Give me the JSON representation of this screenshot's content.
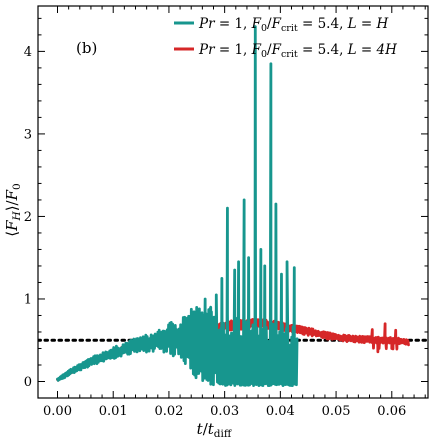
{
  "chart_data": {
    "type": "line",
    "panel_label": "(b)",
    "xlabel": "t/t_diff",
    "ylabel": "⟨F_H⟩/F_0",
    "xlim": [
      -0.0035,
      0.0665
    ],
    "ylim": [
      -0.2,
      4.55
    ],
    "x_ticks": [
      0.0,
      0.01,
      0.02,
      0.03,
      0.04,
      0.05,
      0.06
    ],
    "x_tick_labels": [
      "0.00",
      "0.01",
      "0.02",
      "0.03",
      "0.04",
      "0.05",
      "0.06"
    ],
    "y_ticks": [
      0,
      1,
      2,
      3,
      4
    ],
    "y_tick_labels": [
      "0",
      "1",
      "2",
      "3",
      "4"
    ],
    "grid": false,
    "legend_position": "top-right",
    "reference_line": {
      "y": 0.5,
      "style": "dotted",
      "color": "#000000"
    },
    "series": [
      {
        "name": "Pr = 1, F0/Fcrit = 5.4, L = H",
        "color": "#17968e",
        "kind": "noisy",
        "base_points": [
          [
            0.0,
            0.02
          ],
          [
            0.003,
            0.14
          ],
          [
            0.006,
            0.24
          ],
          [
            0.009,
            0.32
          ],
          [
            0.012,
            0.39
          ],
          [
            0.015,
            0.45
          ],
          [
            0.018,
            0.49
          ],
          [
            0.021,
            0.52
          ],
          [
            0.024,
            0.52
          ],
          [
            0.026,
            0.42
          ],
          [
            0.028,
            0.34
          ],
          [
            0.03,
            0.28
          ],
          [
            0.032,
            0.24
          ],
          [
            0.034,
            0.2
          ],
          [
            0.036,
            0.18
          ],
          [
            0.038,
            0.16
          ],
          [
            0.04,
            0.15
          ],
          [
            0.043,
            0.14
          ]
        ],
        "noise_points": [
          [
            0.0,
            0.02
          ],
          [
            0.012,
            0.08
          ],
          [
            0.018,
            0.12
          ],
          [
            0.022,
            0.28
          ],
          [
            0.025,
            0.45
          ],
          [
            0.028,
            0.55
          ],
          [
            0.043,
            0.55
          ]
        ],
        "spikes": [
          [
            0.0265,
            1.0
          ],
          [
            0.0275,
            0.9
          ],
          [
            0.0285,
            1.05
          ],
          [
            0.0295,
            1.25
          ],
          [
            0.0305,
            2.1
          ],
          [
            0.0318,
            1.35
          ],
          [
            0.0325,
            1.45
          ],
          [
            0.0335,
            2.2
          ],
          [
            0.0343,
            1.5
          ],
          [
            0.0355,
            4.3
          ],
          [
            0.0365,
            1.6
          ],
          [
            0.0372,
            1.4
          ],
          [
            0.0383,
            3.85
          ],
          [
            0.0392,
            2.15
          ],
          [
            0.0402,
            1.3
          ],
          [
            0.0412,
            1.45
          ],
          [
            0.0425,
            1.38
          ]
        ],
        "x_end": 0.043
      },
      {
        "name": "Pr = 1, F0/Fcrit = 5.4, L = 4H",
        "color": "#d62728",
        "kind": "noisy",
        "base_points": [
          [
            0.0,
            0.02
          ],
          [
            0.003,
            0.14
          ],
          [
            0.006,
            0.24
          ],
          [
            0.009,
            0.32
          ],
          [
            0.012,
            0.39
          ],
          [
            0.015,
            0.45
          ],
          [
            0.018,
            0.5
          ],
          [
            0.021,
            0.55
          ],
          [
            0.024,
            0.6
          ],
          [
            0.027,
            0.64
          ],
          [
            0.03,
            0.67
          ],
          [
            0.033,
            0.69
          ],
          [
            0.035,
            0.7
          ],
          [
            0.037,
            0.7
          ],
          [
            0.04,
            0.67
          ],
          [
            0.043,
            0.63
          ],
          [
            0.046,
            0.59
          ],
          [
            0.049,
            0.55
          ],
          [
            0.052,
            0.52
          ],
          [
            0.055,
            0.51
          ],
          [
            0.058,
            0.5
          ],
          [
            0.061,
            0.49
          ],
          [
            0.063,
            0.48
          ]
        ],
        "noise_points": [
          [
            0.0,
            0.01
          ],
          [
            0.012,
            0.04
          ],
          [
            0.02,
            0.05
          ],
          [
            0.03,
            0.06
          ],
          [
            0.04,
            0.05
          ],
          [
            0.052,
            0.04
          ],
          [
            0.063,
            0.04
          ]
        ],
        "spikes": [
          [
            0.0565,
            0.63
          ],
          [
            0.0575,
            0.36
          ],
          [
            0.0588,
            0.7
          ],
          [
            0.06,
            0.4
          ],
          [
            0.0607,
            0.62
          ]
        ],
        "x_end": 0.063
      }
    ]
  },
  "legend": {
    "entries": [
      {
        "prefix": "Pr",
        "mid1": " = 1, ",
        "f0": "F",
        "f0_sub": "0",
        "slash": "/",
        "fcrit": "F",
        "fcrit_sub": "crit",
        "mid2": " = 5.4, ",
        "lvar": "L",
        "mid3": " = ",
        "lval": "H"
      },
      {
        "prefix": "Pr",
        "mid1": " = 1, ",
        "f0": "F",
        "f0_sub": "0",
        "slash": "/",
        "fcrit": "F",
        "fcrit_sub": "crit",
        "mid2": " = 5.4, ",
        "lvar": "L",
        "mid3": " = ",
        "lval": "4H"
      }
    ]
  },
  "axes_text": {
    "x_main": "t",
    "x_slash": "/",
    "x_t": "t",
    "x_sub": "diff",
    "y_open": "⟨",
    "y_f": "F",
    "y_sub_h": "H",
    "y_close": "⟩",
    "y_slash": "/",
    "y_f0": "F",
    "y_sub_0": "0"
  }
}
